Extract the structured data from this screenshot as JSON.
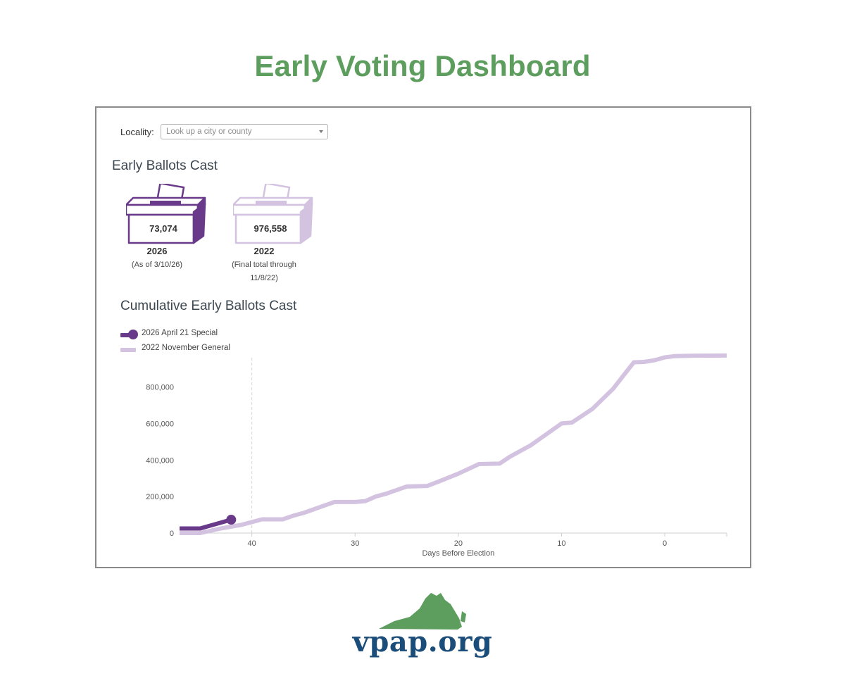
{
  "page": {
    "title": "Early Voting Dashboard"
  },
  "locality": {
    "label": "Locality:",
    "placeholder": "Look up a city or county"
  },
  "early_ballots": {
    "title": "Early Ballots Cast",
    "boxes": [
      {
        "count": "73,074",
        "year": "2026",
        "note_line1": "(As of 3/10/26)",
        "note_line2": "",
        "color": "#6a3a8a"
      },
      {
        "count": "976,558",
        "year": "2022",
        "note_line1": "(Final total through",
        "note_line2": "11/8/22)",
        "color": "#d3c3e0"
      }
    ]
  },
  "cumulative": {
    "title": "Cumulative Early Ballots Cast"
  },
  "chart_data": {
    "type": "line",
    "xlabel": "Days Before Election",
    "ylabel": "",
    "xlim": [
      47,
      -6
    ],
    "ylim": [
      0,
      960000
    ],
    "x_ticks": [
      40,
      30,
      20,
      10,
      0
    ],
    "y_ticks": [
      0,
      200000,
      400000,
      600000,
      800000
    ],
    "y_tick_labels": [
      "0",
      "200,000",
      "400,000",
      "600,000",
      "800,000"
    ],
    "legend_placement": "top-left",
    "marker_x": 40,
    "series": [
      {
        "name": "2026 April 21 Special",
        "color": "#6a3a8a",
        "x": [
          47,
          45,
          42
        ],
        "y": [
          25000,
          25000,
          73074
        ],
        "end_marker": true
      },
      {
        "name": "2022 November General",
        "color": "#d3c3e0",
        "x": [
          47,
          45,
          43,
          41,
          39,
          37,
          36,
          35,
          33,
          32,
          30,
          29,
          28,
          27,
          25,
          23,
          22,
          20,
          18,
          16,
          15,
          13,
          11,
          10,
          9,
          7,
          5,
          3,
          2,
          1,
          0,
          -1,
          -2,
          -3,
          -6
        ],
        "y": [
          0,
          0,
          25000,
          45000,
          75000,
          75000,
          95000,
          110000,
          150000,
          170000,
          170000,
          175000,
          200000,
          215000,
          255000,
          258000,
          280000,
          325000,
          378000,
          380000,
          418000,
          480000,
          560000,
          600000,
          605000,
          680000,
          790000,
          935000,
          937000,
          946000,
          962000,
          969000,
          970000,
          971000,
          972000
        ]
      }
    ]
  },
  "logo": {
    "text": "vpap.org",
    "state_color": "#5d9e5f",
    "text_color": "#1b4d7a"
  }
}
